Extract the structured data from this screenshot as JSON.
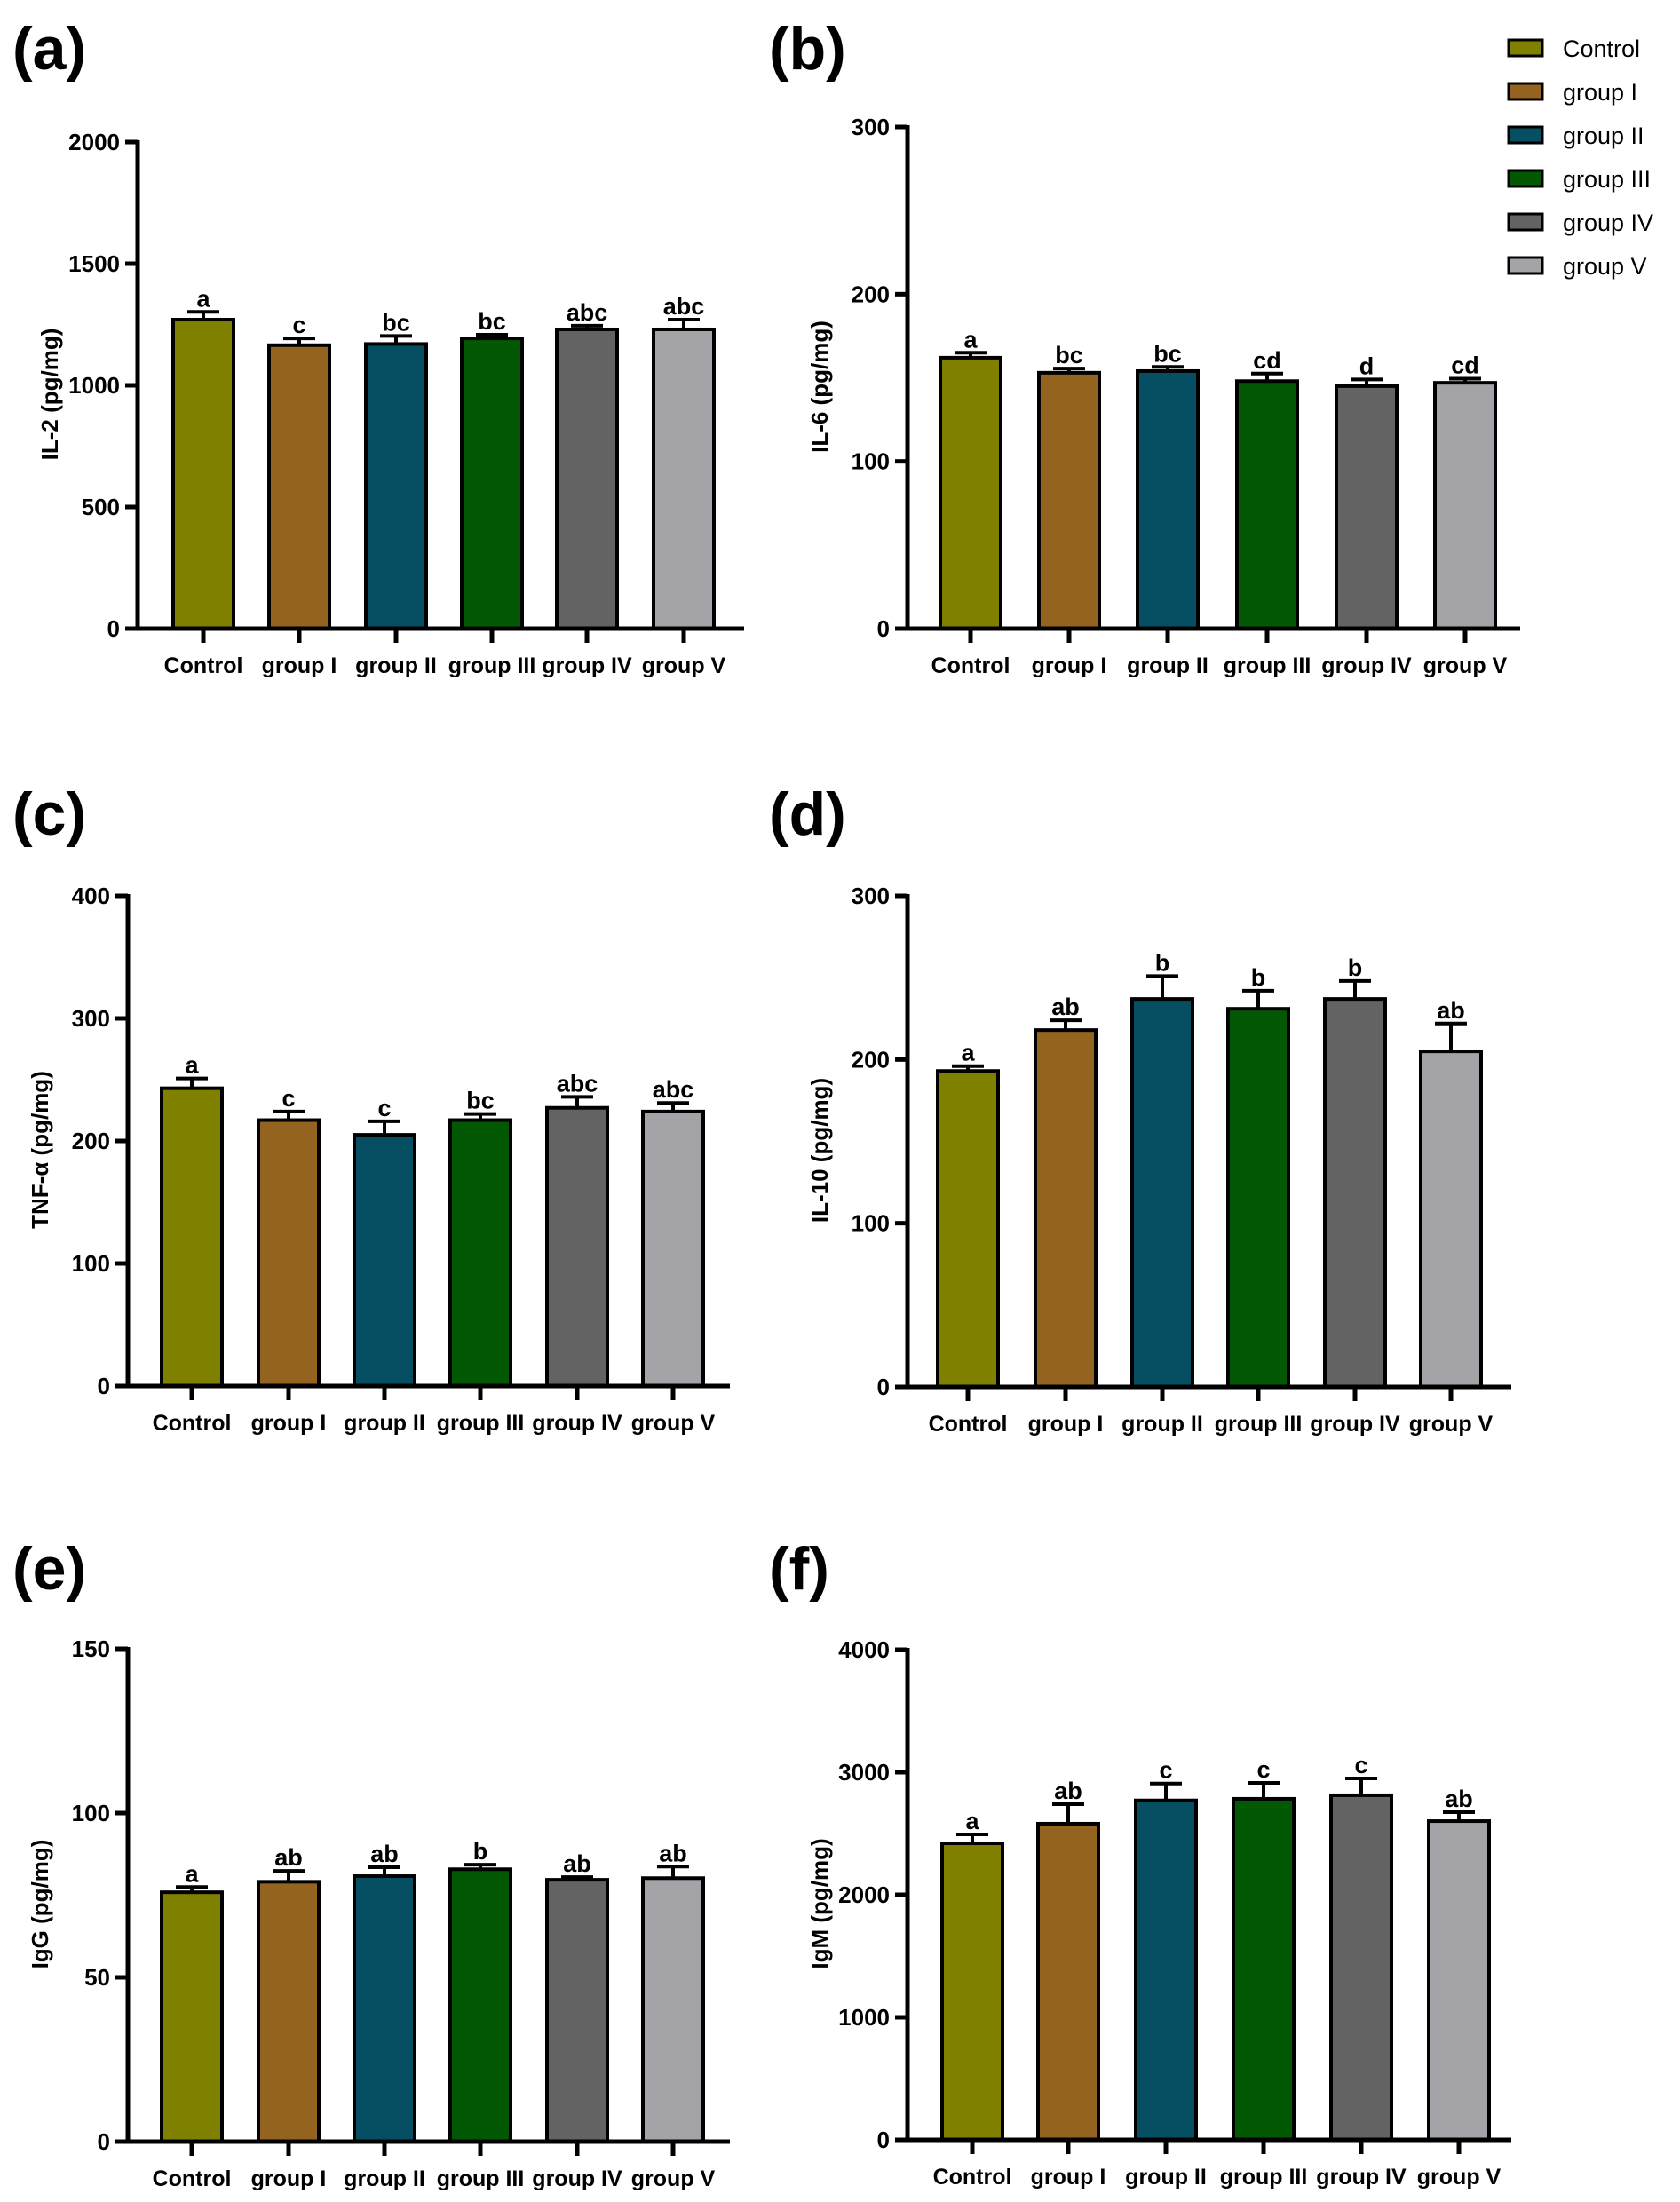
{
  "figure": {
    "legend": {
      "placement": "top-right",
      "entries": [
        {
          "label": "Control",
          "color": "#7f7f00"
        },
        {
          "label": "group I",
          "color": "#946320"
        },
        {
          "label": "group II",
          "color": "#064f63"
        },
        {
          "label": "group III",
          "color": "#035903"
        },
        {
          "label": "group IV",
          "color": "#636363"
        },
        {
          "label": "group V",
          "color": "#a3a3a8"
        }
      ]
    }
  },
  "chart_data": [
    {
      "panel": "(a)",
      "type": "bar",
      "title": "",
      "xlabel": "",
      "ylabel": "IL-2 (pg/mg)",
      "ylim": [
        0,
        2000
      ],
      "yticks": [
        0,
        500,
        1000,
        1500,
        2000
      ],
      "categories": [
        "Control",
        "group I",
        "group II",
        "group III",
        "group IV",
        "group V"
      ],
      "values": [
        1270,
        1165,
        1170,
        1193,
        1230,
        1230
      ],
      "errors": [
        32,
        28,
        33,
        15,
        15,
        40
      ],
      "significance": [
        "a",
        "c",
        "bc",
        "bc",
        "abc",
        "abc"
      ],
      "grid": false
    },
    {
      "panel": "(b)",
      "type": "bar",
      "title": "",
      "xlabel": "",
      "ylabel": "IL-6 (pg/mg)",
      "ylim": [
        0,
        300
      ],
      "yticks": [
        0,
        100,
        200,
        300
      ],
      "categories": [
        "Control",
        "group I",
        "group II",
        "group III",
        "group IV",
        "group V"
      ],
      "values": [
        162,
        153,
        154,
        148,
        145,
        147
      ],
      "errors": [
        3,
        2.5,
        2.5,
        4.5,
        4,
        2.5
      ],
      "significance": [
        "a",
        "bc",
        "bc",
        "cd",
        "d",
        "cd"
      ],
      "grid": false
    },
    {
      "panel": "(c)",
      "type": "bar",
      "title": "",
      "xlabel": "",
      "ylabel": "TNF-α (pg/mg)",
      "ylim": [
        0,
        400
      ],
      "yticks": [
        0,
        100,
        200,
        300,
        400
      ],
      "categories": [
        "Control",
        "group I",
        "group II",
        "group III",
        "group IV",
        "group V"
      ],
      "values": [
        243,
        217,
        205,
        217,
        227,
        224
      ],
      "errors": [
        8,
        7,
        11,
        5,
        9,
        7
      ],
      "significance": [
        "a",
        "c",
        "c",
        "bc",
        "abc",
        "abc"
      ],
      "grid": false
    },
    {
      "panel": "(d)",
      "type": "bar",
      "title": "",
      "xlabel": "",
      "ylabel": "IL-10 (pg/mg)",
      "ylim": [
        0,
        300
      ],
      "yticks": [
        0,
        100,
        200,
        300
      ],
      "categories": [
        "Control",
        "group I",
        "group II",
        "group III",
        "group IV",
        "group V"
      ],
      "values": [
        193,
        218,
        237,
        231,
        237,
        205
      ],
      "errors": [
        3,
        6,
        14,
        11,
        11,
        17
      ],
      "significance": [
        "a",
        "ab",
        "b",
        "b",
        "b",
        "ab"
      ],
      "grid": false
    },
    {
      "panel": "(e)",
      "type": "bar",
      "title": "",
      "xlabel": "",
      "ylabel": "IgG (pg/mg)",
      "ylim": [
        0,
        150
      ],
      "yticks": [
        0,
        50,
        100,
        150
      ],
      "categories": [
        "Control",
        "group I",
        "group II",
        "group III",
        "group IV",
        "group V"
      ],
      "values": [
        75.9,
        79.1,
        80.8,
        82.9,
        79.7,
        80.2
      ],
      "errors": [
        1.6,
        3.3,
        2.7,
        1.4,
        0.8,
        3.5
      ],
      "significance": [
        "a",
        "ab",
        "ab",
        "b",
        "ab",
        "ab"
      ],
      "grid": false
    },
    {
      "panel": "(f)",
      "type": "bar",
      "title": "",
      "xlabel": "",
      "ylabel": "IgM (pg/mg)",
      "ylim": [
        0,
        4000
      ],
      "yticks": [
        0,
        1000,
        2000,
        3000,
        4000
      ],
      "categories": [
        "Control",
        "group I",
        "group II",
        "group III",
        "group IV",
        "group V"
      ],
      "values": [
        2420,
        2580,
        2770,
        2783,
        2812,
        2601
      ],
      "errors": [
        73,
        159,
        138,
        130,
        137,
        73
      ],
      "significance": [
        "a",
        "ab",
        "c",
        "c",
        "c",
        "ab"
      ],
      "grid": false
    }
  ]
}
